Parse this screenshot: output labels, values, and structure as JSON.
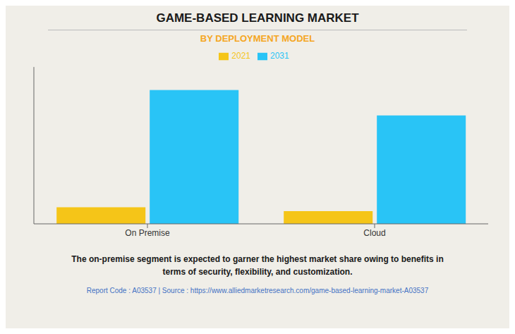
{
  "chart_data": {
    "type": "bar",
    "title": "GAME-BASED LEARNING MARKET",
    "subtitle": "BY DEPLOYMENT MODEL",
    "categories": [
      "On Premise",
      "Cloud"
    ],
    "series": [
      {
        "name": "2021",
        "color": "#F5C518",
        "values": [
          0.72,
          0.55
        ]
      },
      {
        "name": "2031",
        "color": "#29C4F6",
        "values": [
          5.8,
          4.7
        ]
      }
    ],
    "ylim": [
      0,
      6.8
    ],
    "grid": false,
    "legend": "top",
    "tick_labels": "x",
    "annotations": [
      "The on-premise segment is expected to garner the highest market share owing to benefits in\nterms of security, flexibility, and customization.",
      "Report Code : A03537  |  Source : https://www.alliedmarketresearch.com/game-based-learning-market-A03537"
    ]
  }
}
